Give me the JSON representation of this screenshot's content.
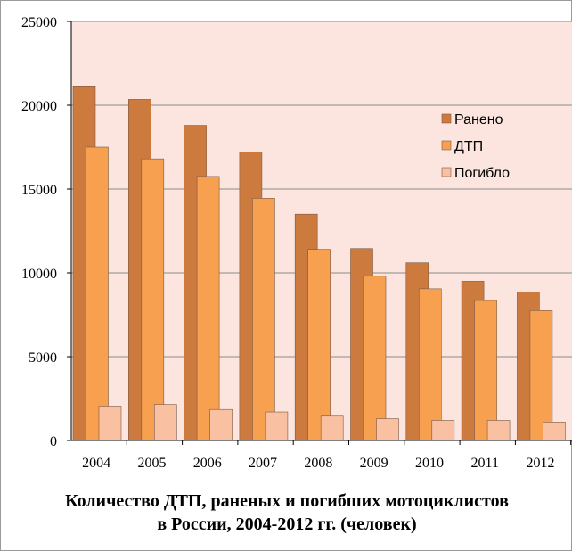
{
  "chart_data": {
    "type": "bar",
    "categories": [
      "2004",
      "2005",
      "2006",
      "2007",
      "2008",
      "2009",
      "2010",
      "2011",
      "2012"
    ],
    "series": [
      {
        "name": "Ранено",
        "color": "#cd7a3f",
        "values": [
          21100,
          20350,
          18800,
          17200,
          13500,
          11450,
          10600,
          9500,
          8850
        ]
      },
      {
        "name": "ДТП",
        "color": "#f7a050",
        "values": [
          17500,
          16800,
          15750,
          14450,
          11400,
          9800,
          9050,
          8350,
          7750
        ]
      },
      {
        "name": "Погибло",
        "color": "#f9c1a2",
        "values": [
          2050,
          2150,
          1850,
          1700,
          1450,
          1300,
          1200,
          1200,
          1100
        ]
      }
    ],
    "ylim": [
      0,
      25000
    ],
    "yticks": [
      "0",
      "5000",
      "10000",
      "15000",
      "20000",
      "25000"
    ],
    "plot_background": "#fbe5de",
    "legend_position": "right",
    "title_lines": [
      "Количество ДТП, раненых и погибших мотоциклистов",
      "в России, 2004-2012 гг. (человек)"
    ]
  }
}
